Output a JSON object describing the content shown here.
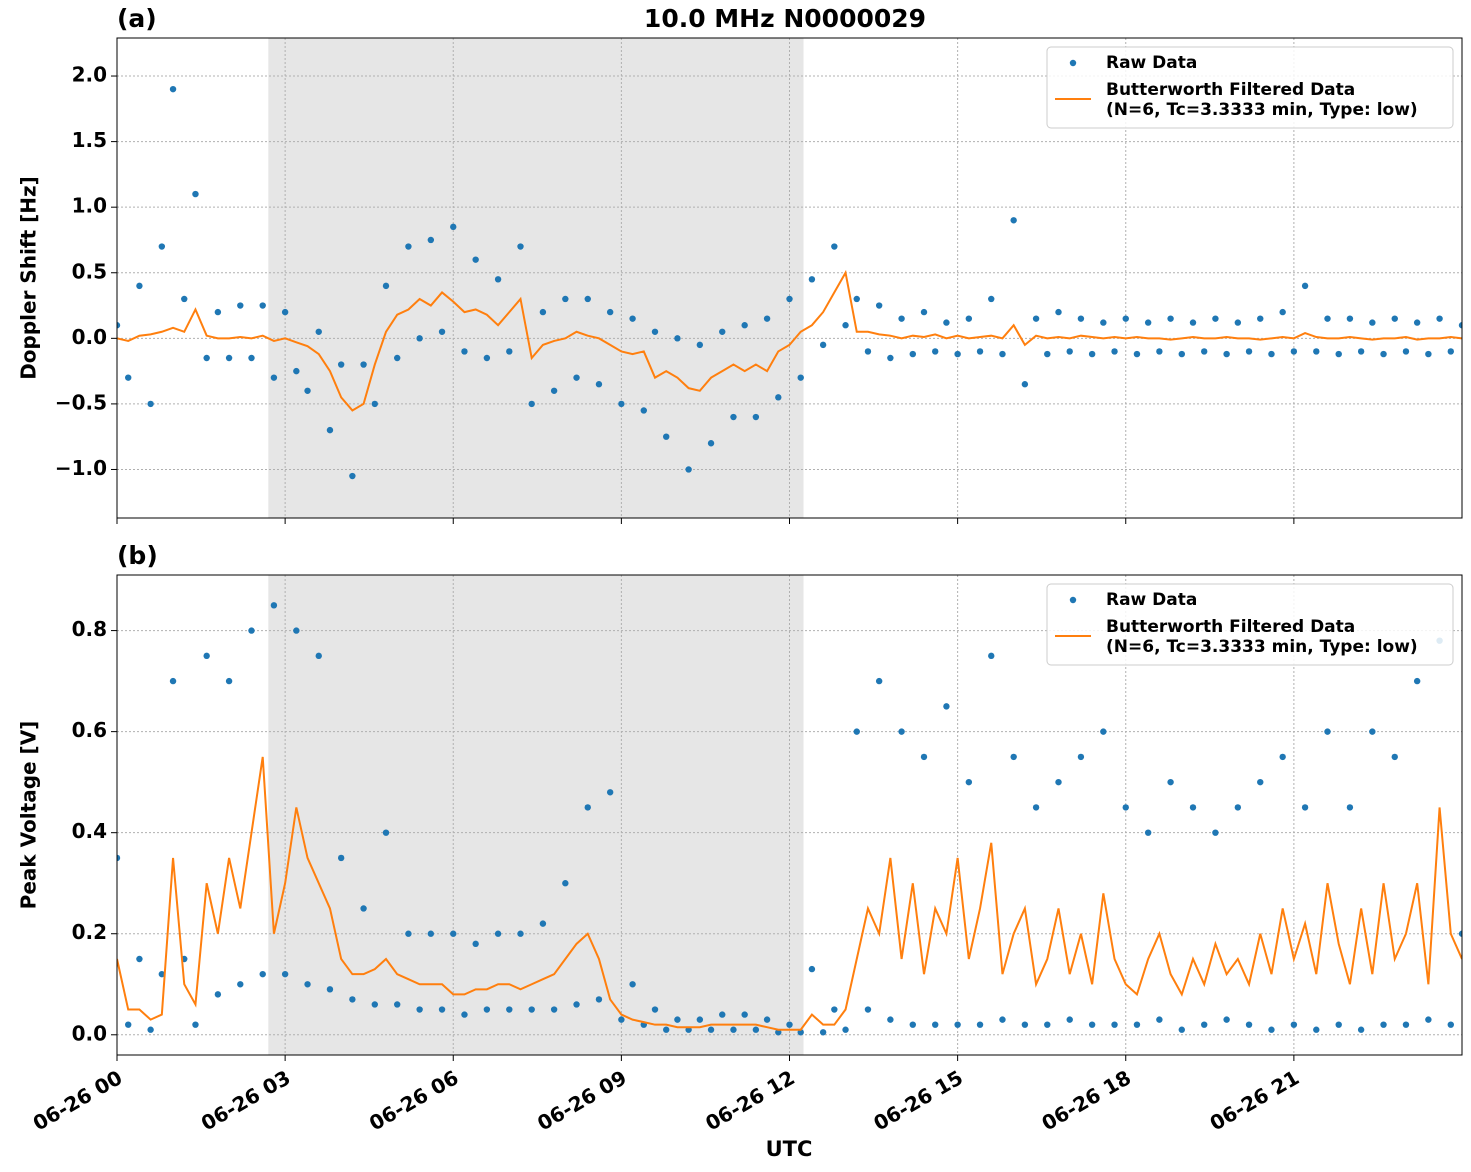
{
  "chart_data": [
    {
      "type": "line",
      "title": "10.0 MHz N0000029",
      "panel_label": "(a)",
      "ylabel": "Doppler Shift [Hz]",
      "xlim": [
        0,
        24
      ],
      "ylim": [
        -1.37,
        2.29
      ],
      "yticks": [
        {
          "value": -1,
          "label": "−1.0"
        },
        {
          "value": -0.5,
          "label": "−0.5"
        },
        {
          "value": 0,
          "label": "0.0"
        },
        0.5,
        {
          "value": 1,
          "label": "1.0"
        },
        1.5,
        {
          "value": 2,
          "label": "2.0"
        }
      ],
      "grid": true,
      "legend": "upper right",
      "shaded_span": [
        2.7,
        12.25
      ],
      "x": [
        0,
        0.2,
        0.4,
        0.6,
        0.8,
        1,
        1.2,
        1.4,
        1.6,
        1.8,
        2,
        2.2,
        2.4,
        2.6,
        2.8,
        3,
        3.2,
        3.4,
        3.6,
        3.8,
        4,
        4.2,
        4.4,
        4.6,
        4.8,
        5,
        5.2,
        5.4,
        5.6,
        5.8,
        6,
        6.2,
        6.4,
        6.6,
        6.8,
        7,
        7.2,
        7.4,
        7.6,
        7.8,
        8,
        8.2,
        8.4,
        8.6,
        8.8,
        9,
        9.2,
        9.4,
        9.6,
        9.8,
        10,
        10.2,
        10.4,
        10.6,
        10.8,
        11,
        11.2,
        11.4,
        11.6,
        11.8,
        12,
        12.2,
        12.4,
        12.6,
        12.8,
        13,
        13.2,
        13.4,
        13.6,
        13.8,
        14,
        14.2,
        14.4,
        14.6,
        14.8,
        15,
        15.2,
        15.4,
        15.6,
        15.8,
        16,
        16.2,
        16.4,
        16.6,
        16.8,
        17,
        17.2,
        17.4,
        17.6,
        17.8,
        18,
        18.2,
        18.4,
        18.6,
        18.8,
        19,
        19.2,
        19.4,
        19.6,
        19.8,
        20,
        20.2,
        20.4,
        20.6,
        20.8,
        21,
        21.2,
        21.4,
        21.6,
        21.8,
        22,
        22.2,
        22.4,
        22.6,
        22.8,
        23,
        23.2,
        23.4,
        23.6,
        23.8,
        24
      ],
      "series": [
        {
          "name": "Raw Data",
          "color": "#1f77b4",
          "marker": "point",
          "values": [
            0.1,
            -0.3,
            0.4,
            -0.5,
            0.7,
            1.9,
            0.3,
            1.1,
            -0.15,
            0.2,
            -0.15,
            0.25,
            -0.15,
            0.25,
            -0.3,
            0.2,
            -0.25,
            -0.4,
            0.05,
            -0.7,
            -0.2,
            -1.05,
            -0.2,
            -0.5,
            0.4,
            -0.15,
            0.7,
            0.0,
            0.75,
            0.05,
            0.85,
            -0.1,
            0.6,
            -0.15,
            0.45,
            -0.1,
            0.7,
            -0.5,
            0.2,
            -0.4,
            0.3,
            -0.3,
            0.3,
            -0.35,
            0.2,
            -0.5,
            0.15,
            -0.55,
            0.05,
            -0.75,
            0.0,
            -1.0,
            -0.05,
            -0.8,
            0.05,
            -0.6,
            0.1,
            -0.6,
            0.15,
            -0.45,
            0.3,
            -0.3,
            0.45,
            -0.05,
            0.7,
            0.1,
            0.3,
            -0.1,
            0.25,
            -0.15,
            0.15,
            -0.12,
            0.2,
            -0.1,
            0.12,
            -0.12,
            0.15,
            -0.1,
            0.3,
            -0.12,
            0.9,
            -0.35,
            0.15,
            -0.12,
            0.2,
            -0.1,
            0.15,
            -0.12,
            0.12,
            -0.1,
            0.15,
            -0.12,
            0.12,
            -0.1,
            0.15,
            -0.12,
            0.12,
            -0.1,
            0.15,
            -0.12,
            0.12,
            -0.1,
            0.15,
            -0.12,
            0.2,
            -0.1,
            0.4,
            -0.1,
            0.15,
            -0.12,
            0.15,
            -0.1,
            0.12,
            -0.12,
            0.15,
            -0.1,
            0.12,
            -0.12,
            0.15,
            -0.1,
            0.1
          ]
        },
        {
          "name": "Butterworth Filtered Data",
          "legend_subtitle": "(N=6, Tc=3.3333 min, Type: low)",
          "color": "#ff7f0e",
          "marker": "line",
          "values": [
            0.0,
            -0.02,
            0.02,
            0.03,
            0.05,
            0.08,
            0.05,
            0.22,
            0.02,
            0.0,
            0.0,
            0.01,
            0.0,
            0.02,
            -0.02,
            0.0,
            -0.03,
            -0.06,
            -0.12,
            -0.25,
            -0.45,
            -0.55,
            -0.5,
            -0.2,
            0.05,
            0.18,
            0.22,
            0.3,
            0.25,
            0.35,
            0.28,
            0.2,
            0.22,
            0.18,
            0.1,
            0.2,
            0.3,
            -0.15,
            -0.05,
            -0.02,
            0.0,
            0.05,
            0.02,
            0.0,
            -0.05,
            -0.1,
            -0.12,
            -0.1,
            -0.3,
            -0.25,
            -0.3,
            -0.38,
            -0.4,
            -0.3,
            -0.25,
            -0.2,
            -0.25,
            -0.2,
            -0.25,
            -0.1,
            -0.05,
            0.05,
            0.1,
            0.2,
            0.35,
            0.5,
            0.05,
            0.05,
            0.03,
            0.02,
            0.0,
            0.02,
            0.01,
            0.03,
            0.0,
            0.02,
            0.0,
            0.01,
            0.02,
            0.0,
            0.1,
            -0.05,
            0.02,
            0.0,
            0.01,
            0.0,
            0.02,
            0.01,
            0.0,
            0.01,
            0.0,
            0.01,
            0.0,
            0.0,
            -0.01,
            0.0,
            0.01,
            0.0,
            0.0,
            0.01,
            0.0,
            0.0,
            -0.01,
            0.0,
            0.01,
            0.0,
            0.04,
            0.01,
            0.0,
            0.0,
            0.01,
            0.0,
            -0.01,
            0.0,
            0.0,
            0.01,
            -0.01,
            0.0,
            0.0,
            0.01,
            0.0
          ]
        }
      ]
    },
    {
      "type": "line",
      "panel_label": "(b)",
      "ylabel": "Peak Voltage [V]",
      "xlabel": "UTC",
      "xlim": [
        0,
        24
      ],
      "ylim": [
        -0.04,
        0.91
      ],
      "xticks": [
        {
          "value": 0,
          "label": "06-26 00"
        },
        {
          "value": 3,
          "label": "06-26 03"
        },
        {
          "value": 6,
          "label": "06-26 06"
        },
        {
          "value": 9,
          "label": "06-26 09"
        },
        {
          "value": 12,
          "label": "06-26 12"
        },
        {
          "value": 15,
          "label": "06-26 15"
        },
        {
          "value": 18,
          "label": "06-26 18"
        },
        {
          "value": 21,
          "label": "06-26 21"
        }
      ],
      "yticks": [
        {
          "value": 0,
          "label": "0.0"
        },
        0.2,
        0.4,
        0.6,
        0.8
      ],
      "grid": true,
      "legend": "upper right",
      "shaded_span": [
        2.7,
        12.25
      ],
      "x": [
        0,
        0.2,
        0.4,
        0.6,
        0.8,
        1,
        1.2,
        1.4,
        1.6,
        1.8,
        2,
        2.2,
        2.4,
        2.6,
        2.8,
        3,
        3.2,
        3.4,
        3.6,
        3.8,
        4,
        4.2,
        4.4,
        4.6,
        4.8,
        5,
        5.2,
        5.4,
        5.6,
        5.8,
        6,
        6.2,
        6.4,
        6.6,
        6.8,
        7,
        7.2,
        7.4,
        7.6,
        7.8,
        8,
        8.2,
        8.4,
        8.6,
        8.8,
        9,
        9.2,
        9.4,
        9.6,
        9.8,
        10,
        10.2,
        10.4,
        10.6,
        10.8,
        11,
        11.2,
        11.4,
        11.6,
        11.8,
        12,
        12.2,
        12.4,
        12.6,
        12.8,
        13,
        13.2,
        13.4,
        13.6,
        13.8,
        14,
        14.2,
        14.4,
        14.6,
        14.8,
        15,
        15.2,
        15.4,
        15.6,
        15.8,
        16,
        16.2,
        16.4,
        16.6,
        16.8,
        17,
        17.2,
        17.4,
        17.6,
        17.8,
        18,
        18.2,
        18.4,
        18.6,
        18.8,
        19,
        19.2,
        19.4,
        19.6,
        19.8,
        20,
        20.2,
        20.4,
        20.6,
        20.8,
        21,
        21.2,
        21.4,
        21.6,
        21.8,
        22,
        22.2,
        22.4,
        22.6,
        22.8,
        23,
        23.2,
        23.4,
        23.6,
        23.8,
        24
      ],
      "series": [
        {
          "name": "Raw Data",
          "color": "#1f77b4",
          "marker": "point",
          "values": [
            0.35,
            0.02,
            0.15,
            0.01,
            0.12,
            0.7,
            0.15,
            0.02,
            0.75,
            0.08,
            0.7,
            0.1,
            0.8,
            0.12,
            0.85,
            0.12,
            0.8,
            0.1,
            0.75,
            0.09,
            0.35,
            0.07,
            0.25,
            0.06,
            0.4,
            0.06,
            0.2,
            0.05,
            0.2,
            0.05,
            0.2,
            0.04,
            0.18,
            0.05,
            0.2,
            0.05,
            0.2,
            0.05,
            0.22,
            0.05,
            0.3,
            0.06,
            0.45,
            0.07,
            0.48,
            0.03,
            0.1,
            0.02,
            0.05,
            0.01,
            0.03,
            0.01,
            0.03,
            0.01,
            0.04,
            0.01,
            0.04,
            0.01,
            0.03,
            0.005,
            0.02,
            0.005,
            0.13,
            0.005,
            0.05,
            0.01,
            0.6,
            0.05,
            0.7,
            0.03,
            0.6,
            0.02,
            0.55,
            0.02,
            0.65,
            0.02,
            0.5,
            0.02,
            0.75,
            0.03,
            0.55,
            0.02,
            0.45,
            0.02,
            0.5,
            0.03,
            0.55,
            0.02,
            0.6,
            0.02,
            0.45,
            0.02,
            0.4,
            0.03,
            0.5,
            0.01,
            0.45,
            0.02,
            0.4,
            0.03,
            0.45,
            0.02,
            0.5,
            0.01,
            0.55,
            0.02,
            0.45,
            0.01,
            0.6,
            0.02,
            0.45,
            0.01,
            0.6,
            0.02,
            0.55,
            0.02,
            0.7,
            0.03,
            0.78,
            0.02,
            0.2
          ]
        },
        {
          "name": "Butterworth Filtered Data",
          "legend_subtitle": "(N=6, Tc=3.3333 min, Type: low)",
          "color": "#ff7f0e",
          "marker": "line",
          "values": [
            0.15,
            0.05,
            0.05,
            0.03,
            0.04,
            0.35,
            0.1,
            0.06,
            0.3,
            0.2,
            0.35,
            0.25,
            0.4,
            0.55,
            0.2,
            0.3,
            0.45,
            0.35,
            0.3,
            0.25,
            0.15,
            0.12,
            0.12,
            0.13,
            0.15,
            0.12,
            0.11,
            0.1,
            0.1,
            0.1,
            0.08,
            0.08,
            0.09,
            0.09,
            0.1,
            0.1,
            0.09,
            0.1,
            0.11,
            0.12,
            0.15,
            0.18,
            0.2,
            0.15,
            0.07,
            0.04,
            0.03,
            0.025,
            0.02,
            0.02,
            0.015,
            0.015,
            0.015,
            0.02,
            0.02,
            0.02,
            0.02,
            0.02,
            0.015,
            0.01,
            0.01,
            0.01,
            0.04,
            0.02,
            0.02,
            0.05,
            0.15,
            0.25,
            0.2,
            0.35,
            0.15,
            0.3,
            0.12,
            0.25,
            0.2,
            0.35,
            0.15,
            0.25,
            0.38,
            0.12,
            0.2,
            0.25,
            0.1,
            0.15,
            0.25,
            0.12,
            0.2,
            0.1,
            0.28,
            0.15,
            0.1,
            0.08,
            0.15,
            0.2,
            0.12,
            0.08,
            0.15,
            0.1,
            0.18,
            0.12,
            0.15,
            0.1,
            0.2,
            0.12,
            0.25,
            0.15,
            0.22,
            0.12,
            0.3,
            0.18,
            0.1,
            0.25,
            0.12,
            0.3,
            0.15,
            0.2,
            0.3,
            0.1,
            0.45,
            0.2,
            0.15
          ]
        }
      ]
    }
  ]
}
